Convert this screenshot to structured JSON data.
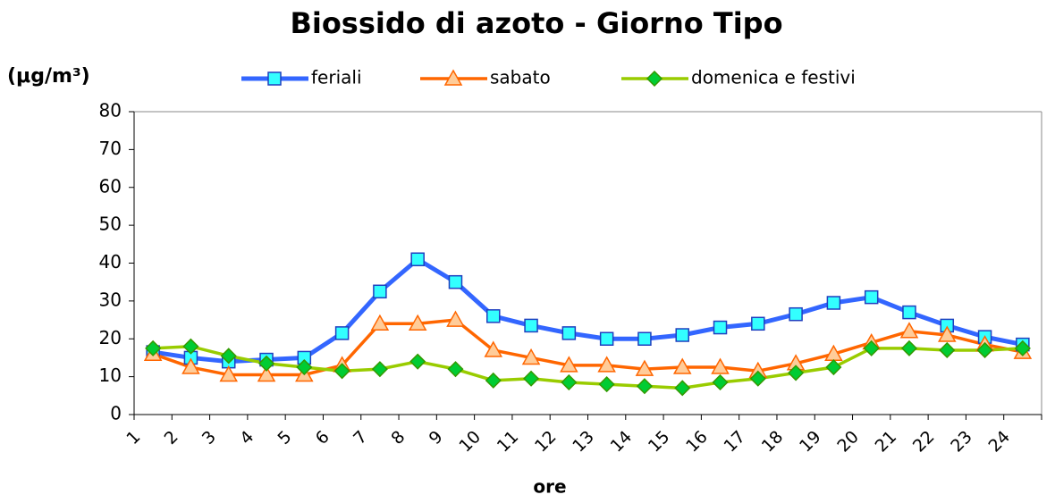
{
  "chart_data": {
    "type": "line",
    "title": "Biossido di azoto - Giorno Tipo",
    "y_label": "(μg/m³)",
    "x_label": "ore",
    "categories": [
      "1",
      "2",
      "3",
      "4",
      "5",
      "6",
      "7",
      "8",
      "9",
      "10",
      "11",
      "12",
      "13",
      "14",
      "15",
      "16",
      "17",
      "18",
      "19",
      "20",
      "21",
      "22",
      "23",
      "24"
    ],
    "series": [
      {
        "name": "feriali",
        "color": "#3366ff",
        "marker": "square",
        "marker_fill": "#33ffff",
        "marker_stroke": "#1f3fbf",
        "values": [
          16.5,
          15,
          14,
          14.5,
          15,
          21.5,
          32.5,
          41,
          35,
          26,
          23.5,
          21.5,
          20,
          20,
          21,
          23,
          24,
          26.5,
          29.5,
          31,
          27,
          23.5,
          20.5,
          18.5
        ]
      },
      {
        "name": "sabato",
        "color": "#ff6600",
        "marker": "triangle",
        "marker_fill": "#ffcc99",
        "marker_stroke": "#ff6600",
        "values": [
          16,
          12.5,
          10.5,
          10.5,
          10.5,
          13,
          24,
          24,
          25,
          17,
          15,
          13,
          13,
          12,
          12.5,
          12.5,
          11.5,
          13.5,
          16,
          19,
          22,
          21,
          18.5,
          16.5
        ]
      },
      {
        "name": "domenica e festivi",
        "color": "#99cc00",
        "marker": "diamond",
        "marker_fill": "#00cc33",
        "marker_stroke": "#339900",
        "values": [
          17.5,
          18,
          15.5,
          13.5,
          12.5,
          11.5,
          12,
          14,
          12,
          9,
          9.5,
          8.5,
          8,
          7.5,
          7,
          8.5,
          9.5,
          11,
          12.5,
          17.5,
          17.5,
          17,
          17,
          17.5
        ]
      }
    ],
    "ylim": [
      0,
      80
    ],
    "yticks": [
      0,
      10,
      20,
      30,
      40,
      50,
      60,
      70,
      80
    ]
  }
}
